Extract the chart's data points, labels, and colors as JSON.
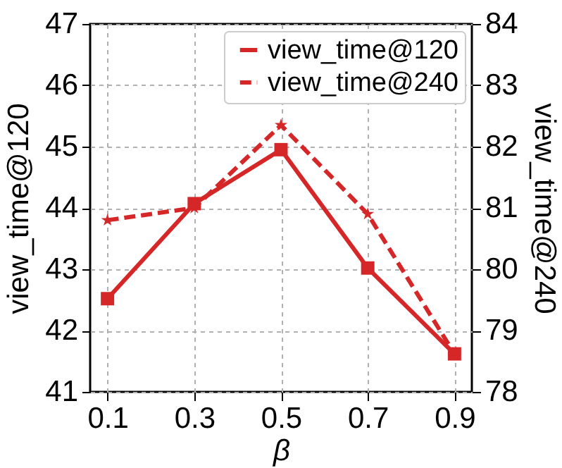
{
  "chart_data": {
    "type": "line",
    "xlabel": "β",
    "ylabel": "view_time@120",
    "y2label": "view_time@240",
    "x": [
      0.1,
      0.3,
      0.5,
      0.7,
      0.9
    ],
    "xlim": [
      0.06,
      0.94
    ],
    "xticks": [
      0.1,
      0.3,
      0.5,
      0.7,
      0.9
    ],
    "ylim": [
      41,
      47
    ],
    "yticks": [
      41,
      42,
      43,
      44,
      45,
      46,
      47
    ],
    "y2lim": [
      78,
      84
    ],
    "y2ticks": [
      78,
      79,
      80,
      81,
      82,
      83,
      84
    ],
    "series": [
      {
        "name": "view_time@120",
        "color": "#d62728",
        "marker": "square",
        "line_style": "solid",
        "values": [
          42.52,
          44.07,
          44.95,
          43.02,
          41.62
        ]
      },
      {
        "name": "view_time@240",
        "color": "#d62728",
        "marker": "star",
        "line_style": "dashed",
        "axis": "y2",
        "values": [
          80.8,
          81.0,
          82.35,
          80.9,
          78.62
        ]
      }
    ],
    "grid": true,
    "legend": "top right"
  }
}
